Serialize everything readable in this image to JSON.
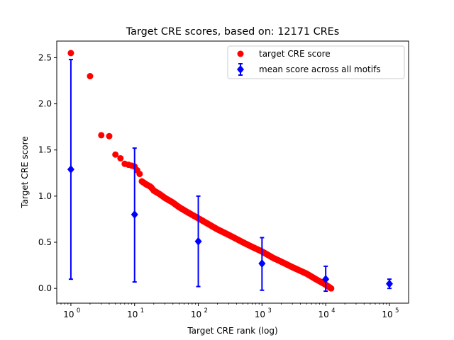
{
  "chart_data": {
    "type": "scatter",
    "title": "Target CRE scores, based on: 12171 CREs",
    "xlabel": "Target CRE rank (log)",
    "ylabel": "Target CRE score",
    "xscale": "log",
    "xlim": [
      0.6,
      200000
    ],
    "ylim": [
      -0.16,
      2.68
    ],
    "xticks": [
      1,
      10,
      100,
      1000,
      10000,
      100000
    ],
    "xtick_labels": [
      {
        "base": "10",
        "exp": "0"
      },
      {
        "base": "10",
        "exp": "1"
      },
      {
        "base": "10",
        "exp": "2"
      },
      {
        "base": "10",
        "exp": "3"
      },
      {
        "base": "10",
        "exp": "4"
      },
      {
        "base": "10",
        "exp": "5"
      }
    ],
    "yticks": [
      0.0,
      0.5,
      1.0,
      1.5,
      2.0,
      2.5
    ],
    "ytick_labels": [
      "0.0",
      "0.5",
      "1.0",
      "1.5",
      "2.0",
      "2.5"
    ],
    "legend_position": "upper-right",
    "series": [
      {
        "name": "target CRE score",
        "kind": "points",
        "color": "#ff0000",
        "marker": "circle",
        "x": [
          1,
          2,
          3,
          4,
          5,
          6,
          7,
          8,
          9,
          10,
          11,
          12
        ],
        "y": [
          2.55,
          2.3,
          1.66,
          1.65,
          1.45,
          1.41,
          1.35,
          1.34,
          1.33,
          1.32,
          1.28,
          1.24
        ]
      },
      {
        "name": "target CRE score",
        "kind": "dense-curve",
        "color": "#ff0000",
        "marker": "circle",
        "x": [
          13,
          15,
          18,
          20,
          25,
          30,
          40,
          50,
          70,
          100,
          150,
          200,
          300,
          500,
          700,
          1000,
          1500,
          2000,
          3000,
          5000,
          7000,
          10000,
          12171
        ],
        "y": [
          1.16,
          1.13,
          1.1,
          1.06,
          1.02,
          0.98,
          0.93,
          0.88,
          0.82,
          0.76,
          0.69,
          0.64,
          0.58,
          0.5,
          0.45,
          0.4,
          0.33,
          0.29,
          0.23,
          0.16,
          0.1,
          0.04,
          0.0
        ]
      },
      {
        "name": "mean score across all motifs",
        "kind": "errorbar",
        "color": "#0000ff",
        "marker": "diamond",
        "x": [
          1,
          10,
          100,
          1000,
          10000,
          100000
        ],
        "y": [
          1.29,
          0.8,
          0.51,
          0.27,
          0.1,
          0.05
        ],
        "yerr_low": [
          0.1,
          0.07,
          0.02,
          -0.02,
          -0.03,
          0.0
        ],
        "yerr_high": [
          2.48,
          1.52,
          1.0,
          0.55,
          0.24,
          0.1
        ]
      }
    ],
    "legend": [
      {
        "label": "target CRE score",
        "color": "#ff0000",
        "marker": "circle"
      },
      {
        "label": "mean score across all motifs",
        "color": "#0000ff",
        "marker": "diamond-errorbar"
      }
    ]
  }
}
